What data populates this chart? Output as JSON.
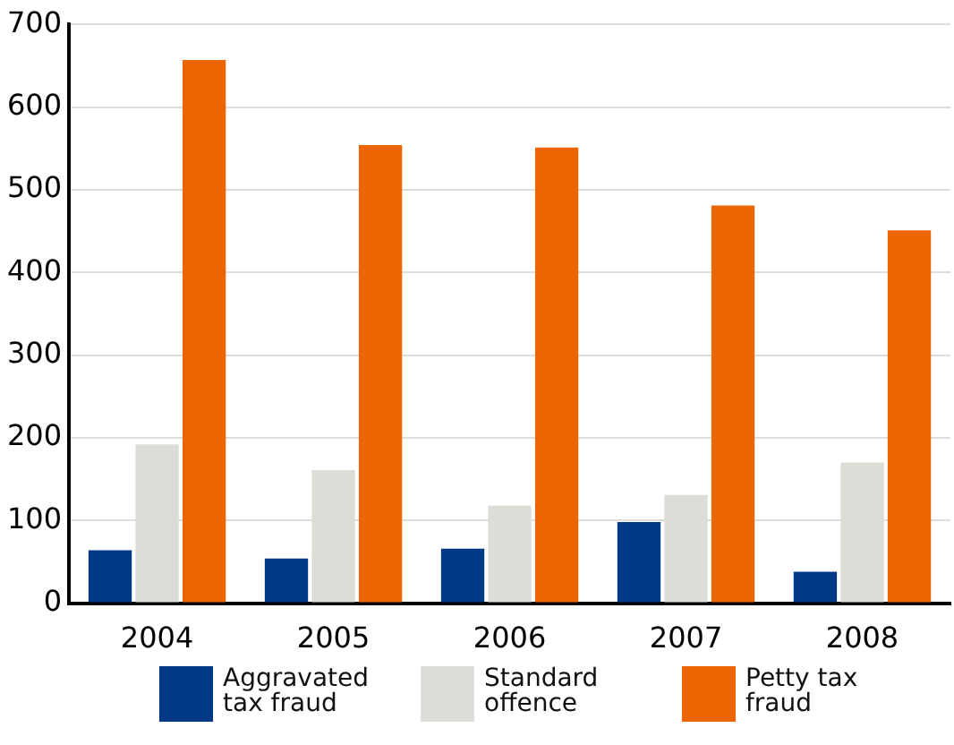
{
  "chart_data": {
    "type": "bar",
    "categories": [
      "2004",
      "2005",
      "2006",
      "2007",
      "2008"
    ],
    "series": [
      {
        "name": "Aggravated tax fraud",
        "color": "#003a87",
        "values": [
          64,
          54,
          66,
          98,
          38
        ]
      },
      {
        "name": "Standard offence",
        "color": "#dcddd7",
        "values": [
          192,
          161,
          118,
          131,
          170
        ]
      },
      {
        "name": "Petty tax fraud",
        "color": "#eb6500",
        "values": [
          657,
          554,
          551,
          481,
          451
        ]
      }
    ],
    "ylim": [
      0,
      700
    ],
    "yticks": [
      0,
      100,
      200,
      300,
      400,
      500,
      600,
      700
    ],
    "grid": "y",
    "legend": "bottom"
  }
}
